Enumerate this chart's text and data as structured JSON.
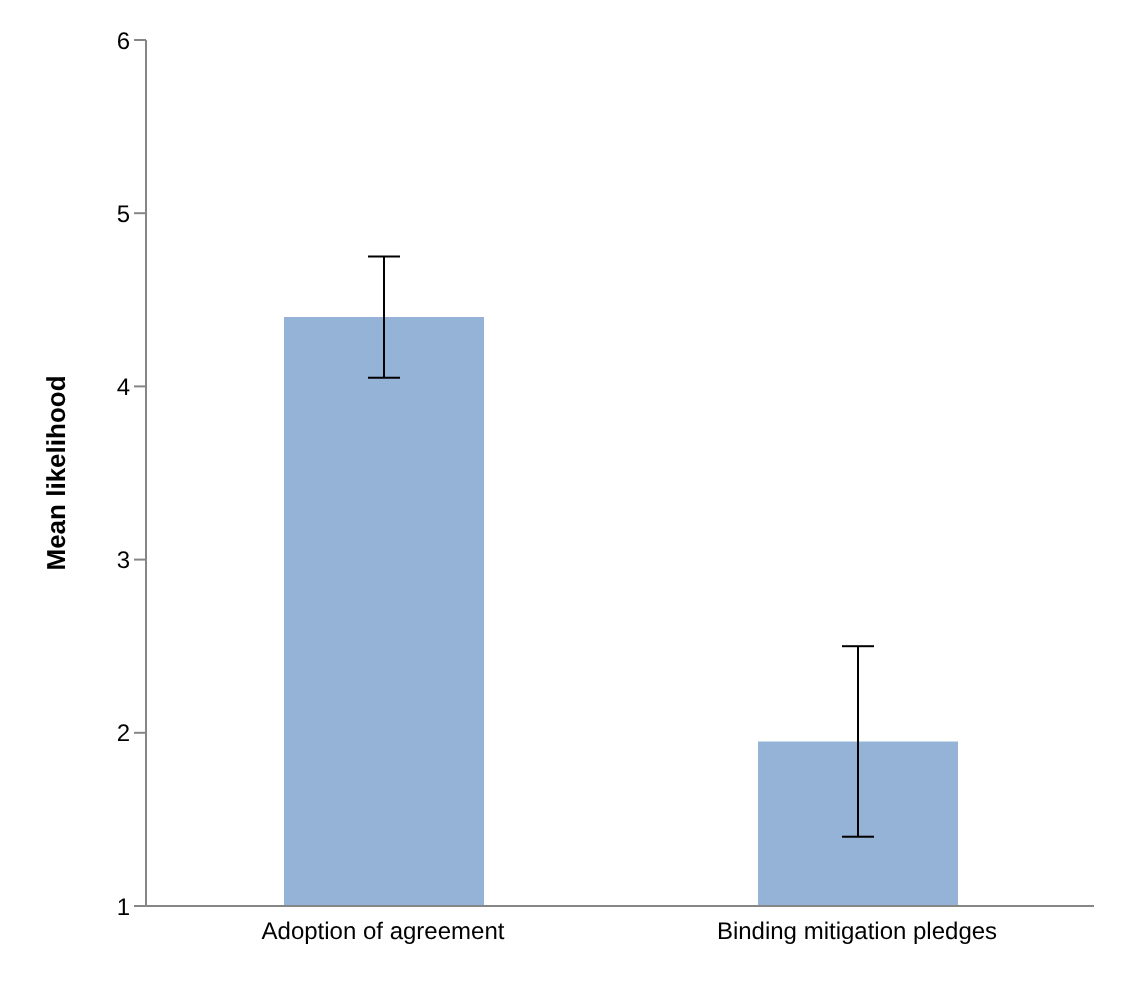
{
  "chart_data": {
    "type": "bar",
    "ylabel": "Mean likelihood",
    "categories": [
      "Adoption of agreement",
      "Binding mitigation pledges"
    ],
    "values": [
      4.4,
      1.95
    ],
    "errors": [
      0.35,
      0.55
    ],
    "color": "#95b3d7",
    "ylim": [
      1,
      6
    ],
    "yticks": [
      1,
      2,
      3,
      4,
      5,
      6
    ],
    "grid": false,
    "legend": false
  }
}
